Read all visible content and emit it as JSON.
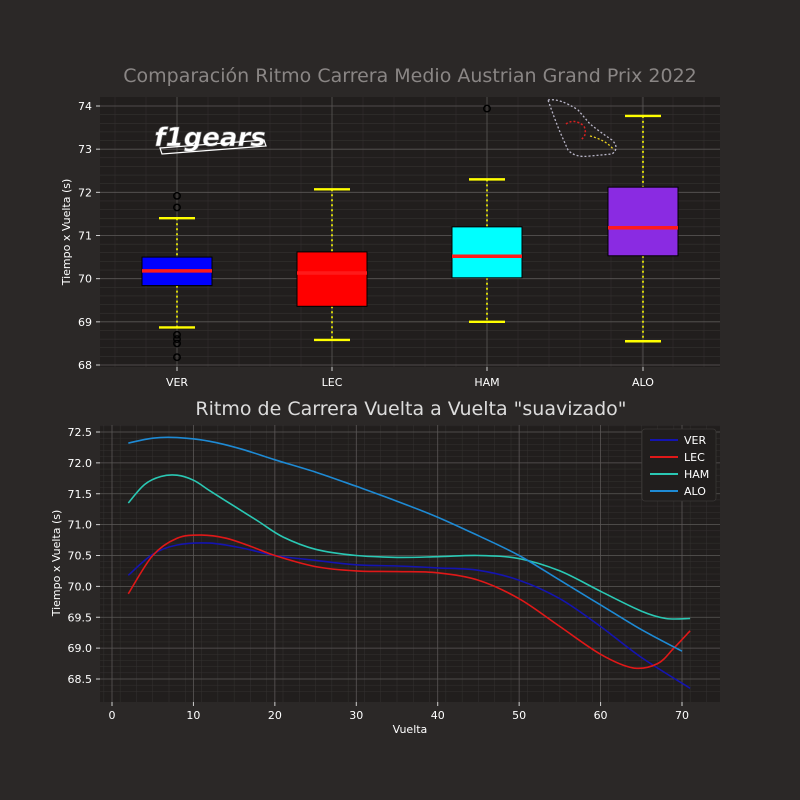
{
  "chart_data": [
    {
      "type": "box",
      "title": "Comparación Ritmo Carrera Medio Austrian Grand Prix 2022",
      "ylabel": "Tiempo x Vuelta (s)",
      "ylim": [
        68,
        74
      ],
      "yticks": [
        68,
        69,
        70,
        71,
        72,
        73,
        74
      ],
      "categories": [
        "VER",
        "LEC",
        "HAM",
        "ALO"
      ],
      "grid": true,
      "logo_text": "f1gears",
      "boxes": [
        {
          "label": "VER",
          "color": "#0000ff",
          "whisker_low": 68.87,
          "q1": 69.84,
          "median": 70.18,
          "q3": 70.5,
          "whisker_high": 71.4,
          "outliers": [
            71.92,
            71.65,
            68.7,
            68.6,
            68.5,
            68.18
          ]
        },
        {
          "label": "LEC",
          "color": "#ff0000",
          "whisker_low": 68.58,
          "q1": 69.36,
          "median": 70.13,
          "q3": 70.62,
          "whisker_high": 72.07,
          "outliers": []
        },
        {
          "label": "HAM",
          "color": "#00ffff",
          "whisker_low": 69.0,
          "q1": 70.02,
          "median": 70.52,
          "q3": 71.2,
          "whisker_high": 72.3,
          "outliers": [
            73.94
          ]
        },
        {
          "label": "ALO",
          "color": "#8a2be2",
          "whisker_low": 68.55,
          "q1": 70.53,
          "median": 71.18,
          "q3": 72.12,
          "whisker_high": 73.77,
          "outliers": []
        }
      ],
      "median_color": "#ff1a1a",
      "whisker_color": "#ffff00"
    },
    {
      "type": "line",
      "title": "Ritmo de Carrera Vuelta a Vuelta \"suavizado\"",
      "xlabel": "Vuelta",
      "ylabel": "Tiempo x Vuelta (s)",
      "xlim": [
        -1,
        74
      ],
      "ylim": [
        68.25,
        72.6
      ],
      "xticks": [
        0,
        10,
        20,
        30,
        40,
        50,
        60,
        70
      ],
      "yticks": [
        68.5,
        69.0,
        69.5,
        70.0,
        70.5,
        71.0,
        71.5,
        72.0,
        72.5
      ],
      "legend": "top-right",
      "grid": true,
      "series": [
        {
          "name": "VER",
          "color": "#1414b0",
          "x": [
            2,
            5,
            8,
            12,
            16,
            20,
            25,
            30,
            35,
            40,
            45,
            50,
            55,
            60,
            65,
            71
          ],
          "y": [
            70.18,
            70.52,
            70.67,
            70.7,
            70.62,
            70.5,
            70.42,
            70.35,
            70.33,
            70.3,
            70.26,
            70.1,
            69.8,
            69.35,
            68.85,
            68.35
          ]
        },
        {
          "name": "LEC",
          "color": "#e01818",
          "x": [
            2,
            5,
            8,
            11,
            14,
            17,
            20,
            25,
            30,
            35,
            40,
            45,
            50,
            55,
            60,
            64,
            67,
            69,
            71
          ],
          "y": [
            69.88,
            70.5,
            70.78,
            70.83,
            70.78,
            70.65,
            70.5,
            70.32,
            70.25,
            70.24,
            70.22,
            70.1,
            69.8,
            69.35,
            68.9,
            68.68,
            68.75,
            69.0,
            69.28
          ]
        },
        {
          "name": "HAM",
          "color": "#2ac8b4",
          "x": [
            2,
            4,
            6,
            8,
            10,
            12,
            15,
            18,
            21,
            25,
            30,
            35,
            40,
            45,
            50,
            55,
            60,
            65,
            68,
            71
          ],
          "y": [
            71.35,
            71.65,
            71.78,
            71.8,
            71.72,
            71.55,
            71.3,
            71.05,
            70.8,
            70.6,
            70.5,
            70.47,
            70.48,
            70.5,
            70.45,
            70.25,
            69.92,
            69.6,
            69.48,
            69.48
          ]
        },
        {
          "name": "ALO",
          "color": "#1e8ad4",
          "x": [
            2,
            5,
            8,
            12,
            16,
            20,
            25,
            30,
            35,
            40,
            45,
            50,
            55,
            60,
            65,
            70
          ],
          "y": [
            72.32,
            72.4,
            72.41,
            72.35,
            72.22,
            72.05,
            71.85,
            71.62,
            71.38,
            71.12,
            70.82,
            70.5,
            70.1,
            69.7,
            69.3,
            68.95
          ]
        }
      ]
    }
  ]
}
